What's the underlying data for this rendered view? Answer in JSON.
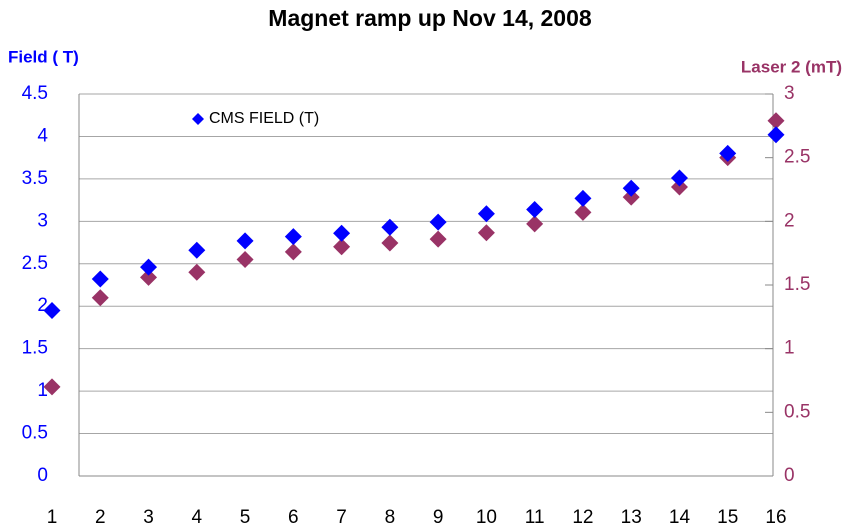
{
  "chart_data": {
    "type": "scatter",
    "title": "Magnet ramp up Nov 14, 2008",
    "y_label": "Field ( T)",
    "y2_label": "Laser 2 (mT)",
    "categories": [
      "1",
      "2",
      "3",
      "4",
      "5",
      "6",
      "7",
      "8",
      "9",
      "10",
      "11",
      "12",
      "13",
      "14",
      "15",
      "16"
    ],
    "series": [
      {
        "name": "CMS FIELD (T)",
        "color": "#0000ff",
        "values": [
          1.95,
          2.32,
          2.46,
          2.66,
          2.77,
          2.82,
          2.86,
          2.93,
          2.99,
          3.09,
          3.14,
          3.27,
          3.39,
          3.51,
          3.8,
          4.02
        ]
      },
      {
        "color": "#993366",
        "axis": "y2",
        "values": [
          0.7,
          1.4,
          1.56,
          1.6,
          1.7,
          1.76,
          1.8,
          1.83,
          1.86,
          1.91,
          1.98,
          2.07,
          2.19,
          2.27,
          2.5,
          2.79
        ]
      }
    ],
    "ylim": [
      0,
      4.5
    ],
    "yticks": [
      0,
      0.5,
      1,
      1.5,
      2,
      2.5,
      3,
      3.5,
      4,
      4.5
    ],
    "y2lim": [
      0,
      3
    ],
    "y2ticks": [
      0,
      0.5,
      1,
      1.5,
      2,
      2.5,
      3
    ],
    "grid": true,
    "legend": "top-left"
  }
}
